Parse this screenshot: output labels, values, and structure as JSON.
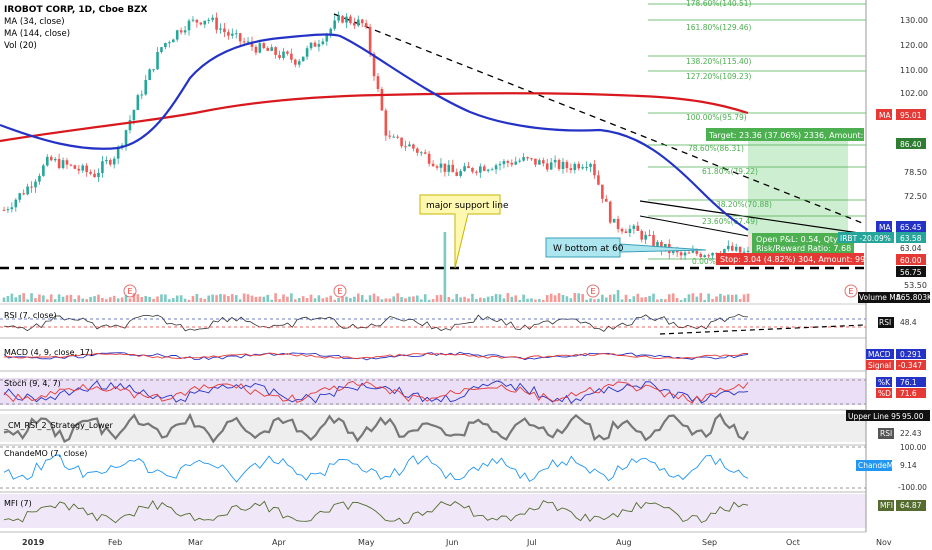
{
  "header": {
    "symbol": "IROBOT CORP, 1D, Cboe BZX",
    "ma34": "MA (34, close)",
    "ma144": "MA (144, close)",
    "vol": "Vol (20)"
  },
  "colors": {
    "up": "#26a69a",
    "down": "#ef5350",
    "ma34": "#2433c6",
    "ma144": "#d9181e",
    "fib": "#4caf50",
    "target_zone": "#c8eccc",
    "stop_zone": "#fadadd"
  },
  "x_axis": {
    "labels": [
      "2019",
      "Feb",
      "Mar",
      "Apr",
      "May",
      "Jun",
      "Jul",
      "Aug",
      "Sep",
      "Oct",
      "Nov"
    ]
  },
  "price_axis": {
    "ticks": [
      "130.00",
      "120.00",
      "110.00",
      "102.00",
      "86.40",
      "78.50",
      "72.50",
      "65.45",
      "63.04",
      "60.00",
      "56.75",
      "53.50"
    ]
  },
  "price_tags": {
    "ma_label": "MA",
    "ma144_value": "95.01",
    "target_price": "86.40",
    "ma34_value": "65.45",
    "irbt": "IRBT -20.09%",
    "irbt_value": "63.58",
    "irbt_extra": "63.04",
    "stop_price": "60.00",
    "support": "56.75"
  },
  "fib_levels": [
    {
      "label": "178.60%(140.51)"
    },
    {
      "label": "161.80%(129.46)"
    },
    {
      "label": "138.20%(115.40)"
    },
    {
      "label": "127.20%(109.23)"
    },
    {
      "label": "100.00%(95.79)"
    },
    {
      "label": "78.60%(86.31)"
    },
    {
      "label": "61.80%(79.22)"
    },
    {
      "label": "38.20%(70.88)"
    },
    {
      "label": "23.60%(67.49)"
    },
    {
      "label": "0.00%(56.22)"
    }
  ],
  "annotations": {
    "support_note": "major support line",
    "w_bottom": "W bottom at 60",
    "target": "Target: 23.36 (37.06%) 2336, Amount: 1070.08",
    "open_pl": "Open P&L: 0.54, Qty: 3",
    "risk_reward": "Risk/Reward Ratio: 7.68",
    "stop": "Stop: 3.04 (4.82%) 304, Amount: 990.88",
    "earnings_marker": "E"
  },
  "indicators": {
    "volume": {
      "label": "Volume MA",
      "value": "865.803K"
    },
    "rsi": {
      "title": "RSI (7, close)",
      "value": "48.4",
      "label": "RSI"
    },
    "macd": {
      "title": "MACD (4, 9, close, 17)",
      "macd_label": "MACD",
      "macd_value": "0.291",
      "signal_label": "Signal",
      "signal_value": "-0.347"
    },
    "stoch": {
      "title": "Stoch (9, 4, 7)",
      "k_label": "%K",
      "k_value": "76.1",
      "d_label": "%D",
      "d_value": "71.6"
    },
    "cm_rsi": {
      "title": "_CM_RSI_2_Strategy_Lower",
      "upper_label": "Upper Line 95",
      "upper_value": "95.00",
      "rsi_label": "RSI",
      "rsi_value": "22.43"
    },
    "chandemo": {
      "title": "ChandeMO (7, close)",
      "label": "ChandeMO",
      "value": "9.14",
      "tick_top": "100.00",
      "tick_bottom": "-100.00"
    },
    "mfi": {
      "title": "MFI (7)",
      "label": "MFI",
      "value": "64.87"
    }
  },
  "chart_data": {
    "type": "line",
    "title": "IROBOT CORP, 1D, Cboe BZX",
    "x_labels": [
      "2019",
      "Feb",
      "Mar",
      "Apr",
      "May",
      "Jun",
      "Jul",
      "Aug",
      "Sep",
      "Oct",
      "Nov"
    ],
    "ylim": [
      53.5,
      135
    ],
    "series": [
      {
        "name": "IRBT",
        "values": [
          76,
          82,
          90,
          88,
          86,
          92,
          108,
          122,
          128,
          130,
          125,
          122,
          120,
          118,
          124,
          130,
          128,
          96,
          94,
          90,
          86,
          88,
          89,
          90,
          89,
          88,
          90,
          72,
          70,
          66,
          63,
          64,
          65,
          63.58
        ]
      },
      {
        "name": "MA (34, close)",
        "values": [
          89,
          86,
          84,
          85,
          94,
          112,
          121,
          122,
          123,
          124,
          124,
          120,
          112,
          104,
          96,
          90,
          89,
          89,
          88,
          88,
          88,
          86,
          80,
          74,
          68,
          65.45
        ]
      },
      {
        "name": "MA (144, close)",
        "values": [
          90,
          91,
          92,
          93,
          94,
          95,
          96,
          97,
          97,
          97,
          97,
          97,
          97,
          97,
          96,
          95.01
        ]
      }
    ]
  }
}
